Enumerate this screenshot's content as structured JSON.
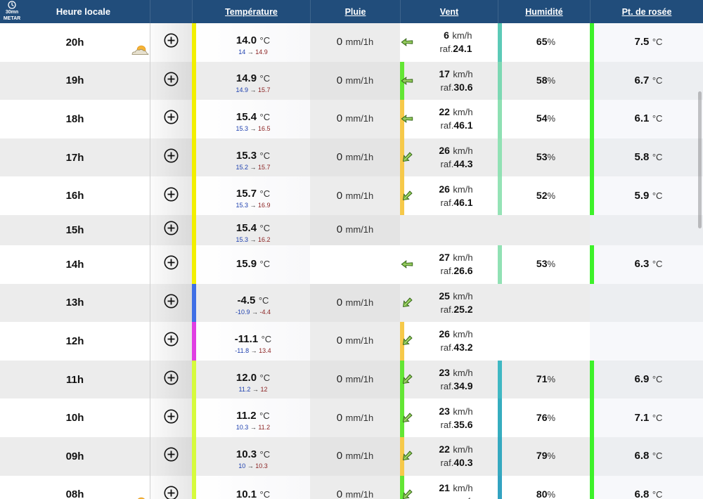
{
  "header": {
    "metar_interval": "30mn",
    "metar_label": "METAR",
    "hour_label": "Heure locale",
    "columns": {
      "temperature": "Température",
      "rain": "Pluie",
      "wind": "Vent",
      "humidity": "Humidité",
      "dewpoint": "Pt. de rosée"
    }
  },
  "units": {
    "temp": "°C",
    "arrow": "→",
    "rain": "mm/1h",
    "wind": "km/h",
    "gust_prefix": "raf.",
    "humidity": "%"
  },
  "colors": {
    "header_bg": "#214d7b",
    "row_alt_bg": "#ececec",
    "temp_min": "#1d3fae",
    "temp_max": "#8a1f1f"
  },
  "rows": [
    {
      "hour": "20h",
      "icon": "sun-cloud-icon",
      "temp": "14.0",
      "tmin": "14",
      "tmax": "14.9",
      "temp_color": "#f2ef00",
      "rain": "0",
      "wind": "6",
      "gust": "24.1",
      "wind_dir": 90,
      "humidity": "65",
      "hum_color": "#5ccab7",
      "dew": "7.5",
      "dew_color": "#3df22a"
    },
    {
      "hour": "19h",
      "temp": "14.9",
      "tmin": "14.9",
      "tmax": "15.7",
      "temp_color": "#f2ef00",
      "rain": "0",
      "wind": "17",
      "gust": "30.6",
      "wind_dir": 90,
      "wind_color": "#63e634",
      "humidity": "58",
      "hum_color": "#7cd8b3",
      "dew": "6.7",
      "dew_color": "#3df22a"
    },
    {
      "hour": "18h",
      "temp": "15.4",
      "tmin": "15.3",
      "tmax": "16.5",
      "temp_color": "#f2ef00",
      "rain": "0",
      "wind": "22",
      "gust": "46.1",
      "wind_dir": 90,
      "wind_color": "#f6c94a",
      "humidity": "54",
      "hum_color": "#8ee0b3",
      "dew": "6.1",
      "dew_color": "#3df22a"
    },
    {
      "hour": "17h",
      "temp": "15.3",
      "tmin": "15.2",
      "tmax": "15.7",
      "temp_color": "#f2ef00",
      "rain": "0",
      "wind": "26",
      "gust": "44.3",
      "wind_dir": 45,
      "wind_color": "#f6c94a",
      "humidity": "53",
      "hum_color": "#91e1b4",
      "dew": "5.8",
      "dew_color": "#3df22a"
    },
    {
      "hour": "16h",
      "temp": "15.7",
      "tmin": "15.3",
      "tmax": "16.9",
      "temp_color": "#f2ef00",
      "rain": "0",
      "wind": "26",
      "gust": "46.1",
      "wind_dir": 45,
      "wind_color": "#f6c94a",
      "humidity": "52",
      "hum_color": "#95e3b6",
      "dew": "5.9",
      "dew_color": "#3df22a"
    },
    {
      "hour": "15h",
      "temp": "15.4",
      "tmin": "15.3",
      "tmax": "16.2",
      "temp_color": "#f2ef00",
      "rain": "0"
    },
    {
      "hour": "14h",
      "temp": "15.9",
      "temp_color": "#f2ef00",
      "wind": "27",
      "gust": "26.6",
      "wind_dir": 90,
      "humidity": "53",
      "hum_color": "#91e1b4",
      "dew": "6.3",
      "dew_color": "#3df22a"
    },
    {
      "hour": "13h",
      "temp": "-4.5",
      "tmin": "-10.9",
      "tmax": "-4.4",
      "temp_color": "#3f6fe6",
      "rain": "0",
      "wind": "25",
      "gust": "25.2",
      "wind_dir": 45
    },
    {
      "hour": "12h",
      "temp": "-11.1",
      "tmin": "-11.8",
      "tmax": "13.4",
      "temp_color": "#e03ee3",
      "rain": "0",
      "wind": "26",
      "gust": "43.2",
      "wind_dir": 45,
      "wind_color": "#f6c94a"
    },
    {
      "hour": "11h",
      "temp": "12.0",
      "tmin": "11.2",
      "tmax": "12",
      "temp_color": "#d6fb3c",
      "rain": "0",
      "wind": "23",
      "gust": "34.9",
      "wind_dir": 45,
      "wind_color": "#63e634",
      "humidity": "71",
      "hum_color": "#3fb8c3",
      "dew": "6.9",
      "dew_color": "#3df22a"
    },
    {
      "hour": "10h",
      "temp": "11.2",
      "tmin": "10.3",
      "tmax": "11.2",
      "temp_color": "#d6fb3c",
      "rain": "0",
      "wind": "23",
      "gust": "35.6",
      "wind_dir": 45,
      "wind_color": "#63e634",
      "humidity": "76",
      "hum_color": "#36adbf",
      "dew": "7.1",
      "dew_color": "#3df22a"
    },
    {
      "hour": "09h",
      "temp": "10.3",
      "tmin": "10",
      "tmax": "10.3",
      "temp_color": "#d6fb3c",
      "rain": "0",
      "wind": "22",
      "gust": "40.3",
      "wind_dir": 45,
      "wind_color": "#f6c94a",
      "humidity": "79",
      "hum_color": "#35a9c0",
      "dew": "6.8",
      "dew_color": "#3df22a"
    },
    {
      "hour": "08h",
      "icon": "sun-cloud-icon",
      "temp": "10.1",
      "temp_color": "#d6fb3c",
      "rain": "0",
      "wind": "21",
      "wind_dir": 45,
      "wind_color": "#63e634",
      "humidity": "80",
      "hum_color": "#33a3c1",
      "dew": "6.8",
      "dew_color": "#3df22a"
    }
  ]
}
